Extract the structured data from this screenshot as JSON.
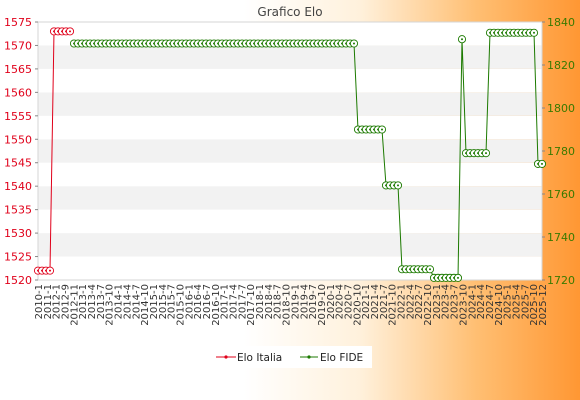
{
  "chart_data": {
    "type": "line",
    "title": "Grafico Elo",
    "xlabel": "",
    "left_axis": {
      "ylim": [
        1520,
        1575
      ],
      "ticks": [
        1520,
        1525,
        1530,
        1535,
        1540,
        1545,
        1550,
        1555,
        1560,
        1565,
        1570,
        1575
      ]
    },
    "right_axis": {
      "ylim": [
        1720,
        1840
      ],
      "ticks": [
        1720,
        1740,
        1760,
        1780,
        1800,
        1820,
        1840
      ]
    },
    "grid": "horizontal bands",
    "legend": "bottom-center",
    "x_tick_labels": [
      "2010-1",
      "2011-1",
      "2012-1",
      "2012-9",
      "2012-11",
      "2013-1",
      "2013-4",
      "2013-7",
      "2013-10",
      "2014-1",
      "2014-4",
      "2014-7",
      "2014-10",
      "2015-1",
      "2015-4",
      "2015-7",
      "2015-10",
      "2016-1",
      "2016-4",
      "2016-7",
      "2016-10",
      "2017-1",
      "2017-4",
      "2017-7",
      "2017-10",
      "2018-1",
      "2018-4",
      "2018-7",
      "2018-10",
      "2019-1",
      "2019-4",
      "2019-7",
      "2019-10",
      "2020-1",
      "2020-4",
      "2020-7",
      "2020-10",
      "2021-1",
      "2021-4",
      "2021-7",
      "2021-10",
      "2022-1",
      "2022-4",
      "2022-7",
      "2022-10",
      "2023-1",
      "2023-4",
      "2023-7",
      "2023-10",
      "2024-1",
      "2024-4",
      "2024-7",
      "2024-10",
      "2025-1",
      "2025-4",
      "2025-7",
      "2025-10",
      "2025-12"
    ],
    "series": [
      {
        "name": "Elo Italia",
        "axis": "left",
        "color": "#e0001a",
        "points": [
          {
            "i": 0,
            "y": 1522
          },
          {
            "i": 1,
            "y": 1522
          },
          {
            "i": 2,
            "y": 1522
          },
          {
            "i": 3,
            "y": 1522
          },
          {
            "i": 4,
            "y": 1573
          },
          {
            "i": 5,
            "y": 1573
          },
          {
            "i": 6,
            "y": 1573
          },
          {
            "i": 7,
            "y": 1573
          },
          {
            "i": 8,
            "y": 1573
          }
        ]
      },
      {
        "name": "Elo FIDE",
        "axis": "right",
        "color": "#1c7a00",
        "start_index": 9,
        "values": [
          1830,
          1830,
          1830,
          1830,
          1830,
          1830,
          1830,
          1830,
          1830,
          1830,
          1830,
          1830,
          1830,
          1830,
          1830,
          1830,
          1830,
          1830,
          1830,
          1830,
          1830,
          1830,
          1830,
          1830,
          1830,
          1830,
          1830,
          1830,
          1830,
          1830,
          1830,
          1830,
          1830,
          1830,
          1830,
          1830,
          1830,
          1830,
          1830,
          1830,
          1830,
          1830,
          1830,
          1830,
          1830,
          1830,
          1830,
          1830,
          1830,
          1830,
          1830,
          1830,
          1830,
          1830,
          1830,
          1830,
          1830,
          1830,
          1830,
          1830,
          1830,
          1830,
          1830,
          1830,
          1830,
          1830,
          1830,
          1830,
          1830,
          1830,
          1830,
          1790,
          1790,
          1790,
          1790,
          1790,
          1790,
          1790,
          1764,
          1764,
          1764,
          1764,
          1725,
          1725,
          1725,
          1725,
          1725,
          1725,
          1725,
          1725,
          1721,
          1721,
          1721,
          1721,
          1721,
          1721,
          1721,
          1832,
          1779,
          1779,
          1779,
          1779,
          1779,
          1779,
          1835,
          1835,
          1835,
          1835,
          1835,
          1835,
          1835,
          1835,
          1835,
          1835,
          1835,
          1835,
          1774,
          1774
        ]
      }
    ]
  }
}
